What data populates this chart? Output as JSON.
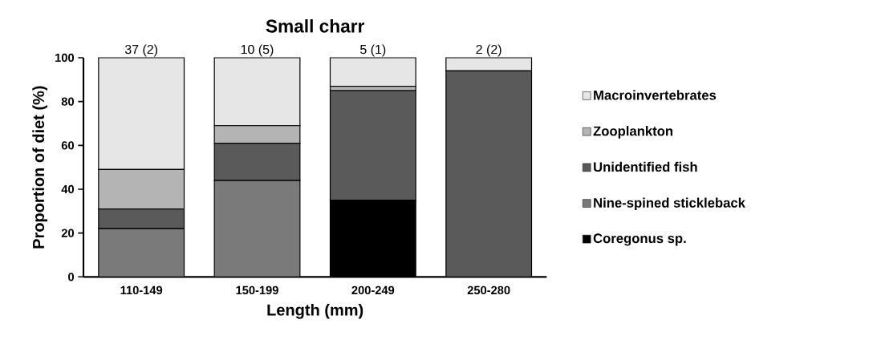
{
  "chart_data": {
    "type": "bar",
    "stacked": true,
    "title": "Small charr",
    "xlabel": "Length (mm)",
    "ylabel": "Proportion of diet (%)",
    "categories": [
      "110-149",
      "150-199",
      "200-249",
      "250-280"
    ],
    "series": [
      {
        "name": "Coregonus sp.",
        "color": "#000000",
        "values": [
          0,
          0,
          35,
          0
        ]
      },
      {
        "name": "Nine-spined stickleback",
        "color": "#7a7a7a",
        "values": [
          22,
          44,
          0,
          0
        ]
      },
      {
        "name": "Unidentified fish",
        "color": "#5a5a5a",
        "values": [
          9,
          17,
          50,
          94
        ]
      },
      {
        "name": "Zooplankton",
        "color": "#b4b4b4",
        "values": [
          18,
          8,
          2,
          0
        ]
      },
      {
        "name": "Macroinvertebrates",
        "color": "#e6e6e6",
        "values": [
          51,
          31,
          13,
          6
        ]
      }
    ],
    "ylim": [
      0,
      100
    ],
    "yticks": [
      0,
      20,
      40,
      60,
      80,
      100
    ],
    "legend": "right",
    "grid": false,
    "annotations": [
      {
        "text": "37 (2)",
        "x": "110-149",
        "y": 100
      },
      {
        "text": "10 (5)",
        "x": "150-199",
        "y": 100
      },
      {
        "text": "5 (1)",
        "x": "200-249",
        "y": 100
      },
      {
        "text": "2 (2)",
        "x": "250-280",
        "y": 100
      }
    ]
  }
}
